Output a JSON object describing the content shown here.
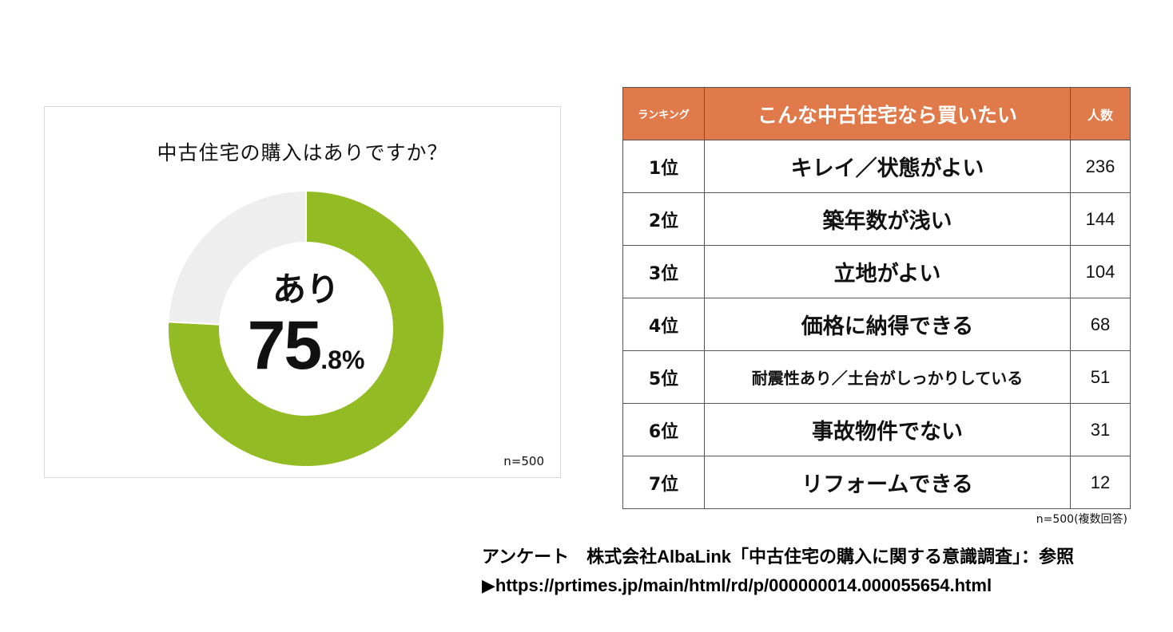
{
  "chart_data": [
    {
      "type": "pie",
      "title": "中古住宅の購入はありですか？",
      "labels": [
        "あり",
        ""
      ],
      "values": [
        75.8,
        24.2
      ],
      "colors": [
        "#93bc24",
        "#eeeeee"
      ],
      "center_label": "あり",
      "center_value_int": "75",
      "center_value_dec": ".8%",
      "note": "n=500"
    },
    {
      "type": "table",
      "columns": [
        "ランキング",
        "こんな中古住宅なら買いたい",
        "人数"
      ],
      "rows": [
        {
          "rank": "1位",
          "item": "キレイ／状態がよい",
          "count": "236"
        },
        {
          "rank": "2位",
          "item": "築年数が浅い",
          "count": "144"
        },
        {
          "rank": "3位",
          "item": "立地がよい",
          "count": "104"
        },
        {
          "rank": "4位",
          "item": "価格に納得できる",
          "count": "68"
        },
        {
          "rank": "5位",
          "item": "耐震性あり／土台がしっかりしている",
          "count": "51"
        },
        {
          "rank": "6位",
          "item": "事故物件でない",
          "count": "31"
        },
        {
          "rank": "7位",
          "item": "リフォームできる",
          "count": "12"
        }
      ],
      "note": "n=500(複数回答)",
      "header_color": "#e07a4a"
    }
  ],
  "source": {
    "line1": "アンケート　株式会社AlbaLink「中古住宅の購入に関する意識調査」：参照",
    "line2": "▶https://prtimes.jp/main/html/rd/p/000000014.000055654.html"
  }
}
